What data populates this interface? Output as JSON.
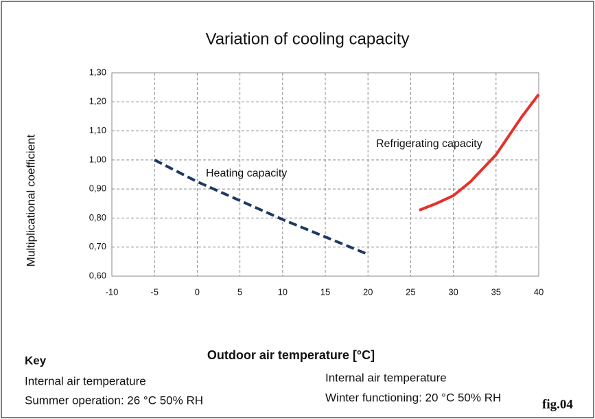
{
  "chart_data": {
    "type": "line",
    "title": "Variation of cooling capacity",
    "xlabel": "Outdoor air temperature [°C]",
    "ylabel": "Multiplicational coefficient",
    "xlim": [
      -10,
      40
    ],
    "xticks": [
      -10,
      -5,
      0,
      5,
      10,
      15,
      20,
      25,
      30,
      35,
      40
    ],
    "ylim": [
      0.6,
      1.3
    ],
    "yticks": [
      {
        "value": 0.6,
        "label": "0,60"
      },
      {
        "value": 0.7,
        "label": "0,70"
      },
      {
        "value": 0.8,
        "label": "0,80"
      },
      {
        "value": 0.9,
        "label": "0,90"
      },
      {
        "value": 1.0,
        "label": "1,00"
      },
      {
        "value": 1.1,
        "label": "1,10"
      },
      {
        "value": 1.2,
        "label": "1,20"
      },
      {
        "value": 1.3,
        "label": "1,30"
      }
    ],
    "grid": true,
    "series": [
      {
        "name": "Heating capacity",
        "color": "#1f3864",
        "dashed": true,
        "x": [
          -5,
          0,
          5,
          10,
          15,
          20
        ],
        "values": [
          1.0,
          0.925,
          0.86,
          0.795,
          0.735,
          0.675
        ]
      },
      {
        "name": "Refrigerating capacity",
        "color": "#e8302a",
        "dashed": false,
        "x": [
          26,
          28,
          30,
          32,
          35,
          38,
          40
        ],
        "values": [
          0.827,
          0.85,
          0.877,
          0.925,
          1.018,
          1.148,
          1.226
        ]
      }
    ]
  },
  "key": {
    "title": "Key",
    "summer": [
      "Internal air temperature",
      "Summer operation: 26 °C 50% RH"
    ],
    "winter": [
      "Internal air temperature",
      "Winter functioning: 20 °C 50% RH"
    ]
  },
  "figure_label": "fig.04"
}
